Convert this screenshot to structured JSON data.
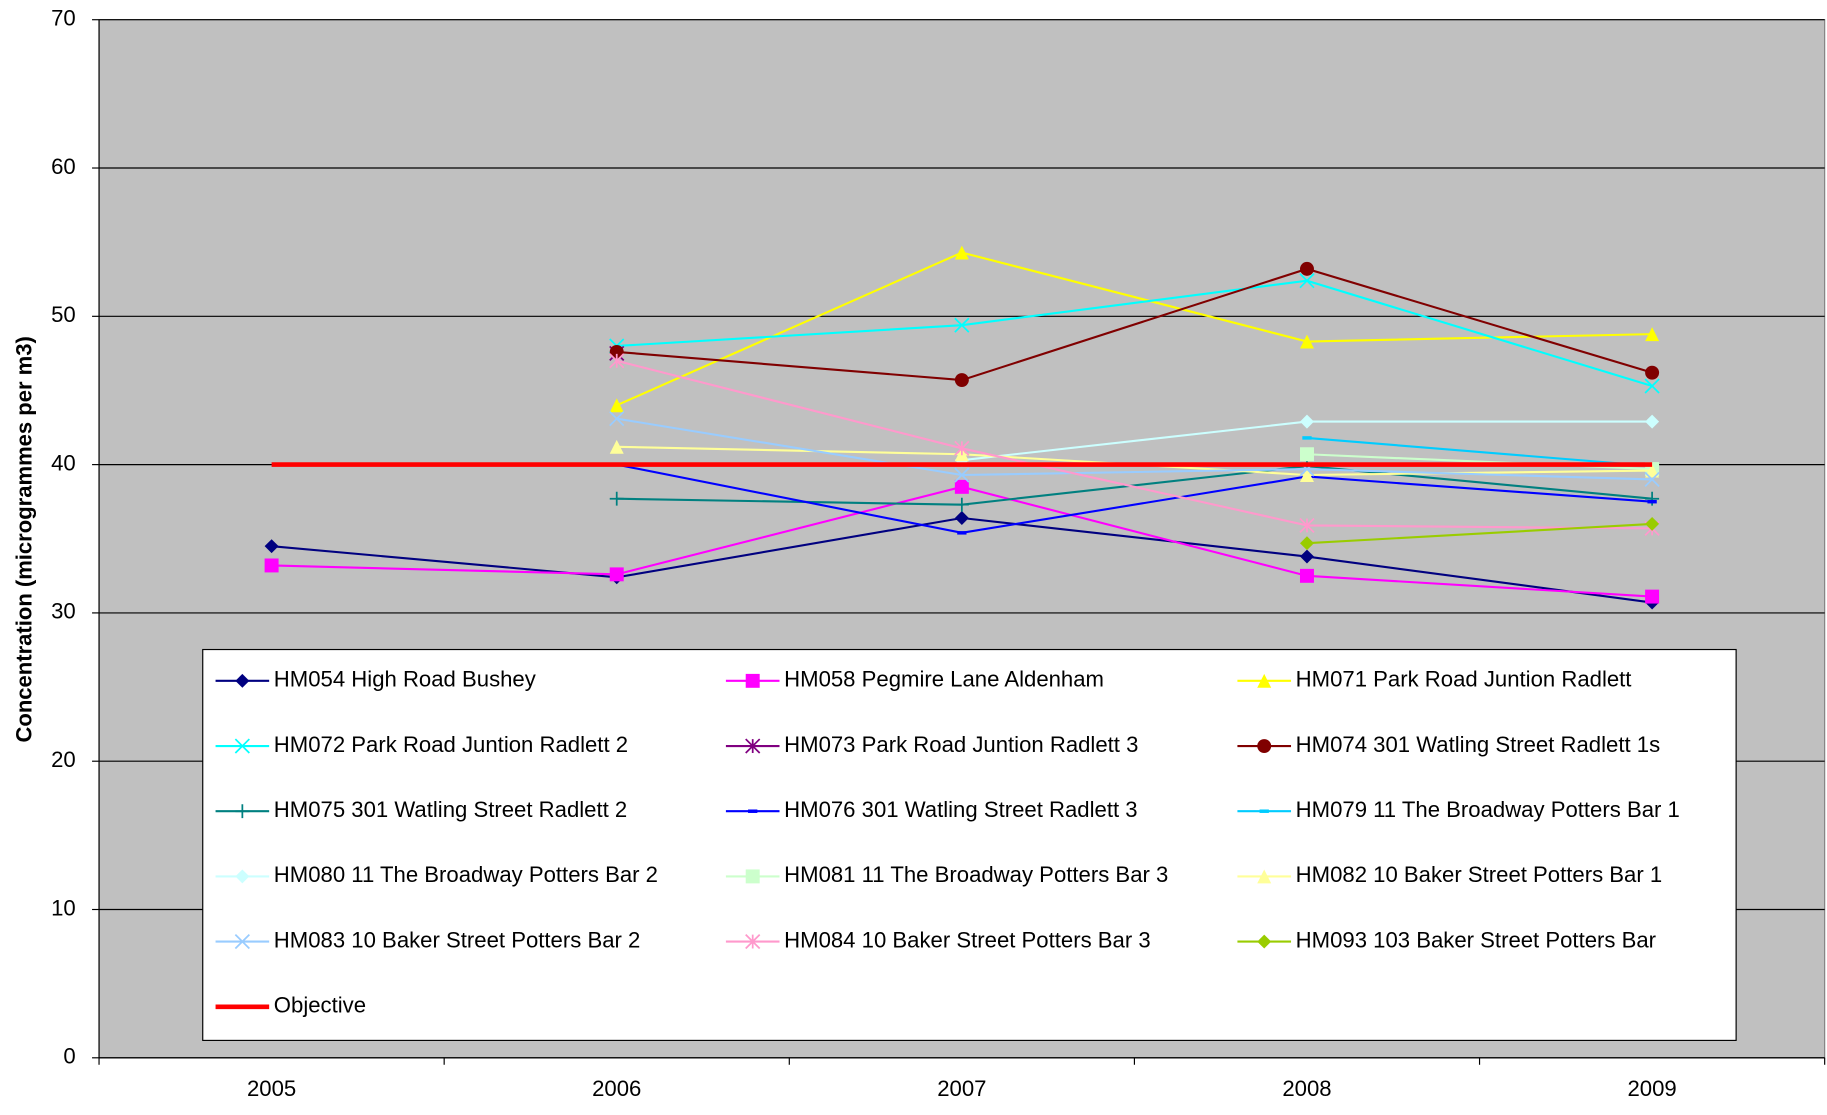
{
  "chart_data": {
    "type": "line",
    "y_label": "Concentration (microgrammes per m3)",
    "categories": [
      "2005",
      "2006",
      "2007",
      "2008",
      "2009"
    ],
    "ylim": [
      0,
      70
    ],
    "yticks": [
      0,
      10,
      20,
      30,
      40,
      50,
      60,
      70
    ],
    "grid": true,
    "series": [
      {
        "name": "HM054 High Road Bushey",
        "color": "#000080",
        "marker": "diamond",
        "values": [
          34.5,
          32.4,
          36.4,
          33.8,
          30.7
        ]
      },
      {
        "name": "HM058 Pegmire Lane Aldenham",
        "color": "#ff00ff",
        "marker": "square",
        "values": [
          33.2,
          32.6,
          38.5,
          32.5,
          31.1
        ]
      },
      {
        "name": "HM071 Park Road Juntion Radlett",
        "color": "#ffff00",
        "marker": "triangle",
        "values": [
          null,
          44.0,
          54.3,
          48.3,
          48.8
        ]
      },
      {
        "name": "HM072 Park Road Juntion Radlett 2",
        "color": "#00ffff",
        "marker": "x",
        "values": [
          null,
          48.0,
          49.4,
          52.4,
          45.3
        ]
      },
      {
        "name": "HM073 Park Road Juntion Radlett 3",
        "color": "#800080",
        "marker": "asterisk",
        "values": [
          null,
          47.5,
          null,
          null,
          null
        ]
      },
      {
        "name": "HM074 301 Watling Street Radlett 1s",
        "color": "#800000",
        "marker": "circle",
        "values": [
          null,
          47.6,
          45.7,
          53.2,
          46.2
        ]
      },
      {
        "name": "HM075 301 Watling Street Radlett 2",
        "color": "#008080",
        "marker": "plus",
        "values": [
          null,
          37.7,
          37.3,
          39.9,
          37.7
        ]
      },
      {
        "name": "HM076 301 Watling Street Radlett 3",
        "color": "#0000ff",
        "marker": "dash",
        "values": [
          null,
          40.0,
          35.4,
          39.2,
          37.5
        ]
      },
      {
        "name": "HM079 11 The Broadway Potters Bar 1",
        "color": "#00ccff",
        "marker": "dash",
        "values": [
          null,
          null,
          null,
          41.8,
          39.9
        ]
      },
      {
        "name": "HM080 11 The Broadway Potters Bar 2",
        "color": "#ccffff",
        "marker": "diamond",
        "values": [
          null,
          null,
          40.3,
          42.9,
          42.9
        ]
      },
      {
        "name": "HM081 11 The Broadway Potters Bar 3",
        "color": "#ccffcc",
        "marker": "square",
        "values": [
          null,
          null,
          null,
          40.7,
          39.7
        ]
      },
      {
        "name": "HM082 10 Baker Street Potters Bar 1",
        "color": "#ffff99",
        "marker": "triangle",
        "values": [
          null,
          41.2,
          40.7,
          39.3,
          39.6
        ]
      },
      {
        "name": "HM083 10 Baker Street Potters Bar 2",
        "color": "#99ccff",
        "marker": "x",
        "values": [
          null,
          43.1,
          39.3,
          39.7,
          39.0
        ]
      },
      {
        "name": "HM084 10 Baker Street Potters Bar 3",
        "color": "#ff99cc",
        "marker": "asterisk",
        "values": [
          null,
          47.0,
          41.1,
          35.9,
          35.7
        ]
      },
      {
        "name": "HM093 103 Baker Street Potters Bar",
        "color": "#99cc00",
        "marker": "diamond",
        "values": [
          null,
          null,
          null,
          34.7,
          36.0
        ]
      },
      {
        "name": "Objective",
        "color": "#ff0000",
        "marker": "none",
        "values": [
          40,
          40,
          40,
          40,
          40
        ]
      }
    ]
  }
}
